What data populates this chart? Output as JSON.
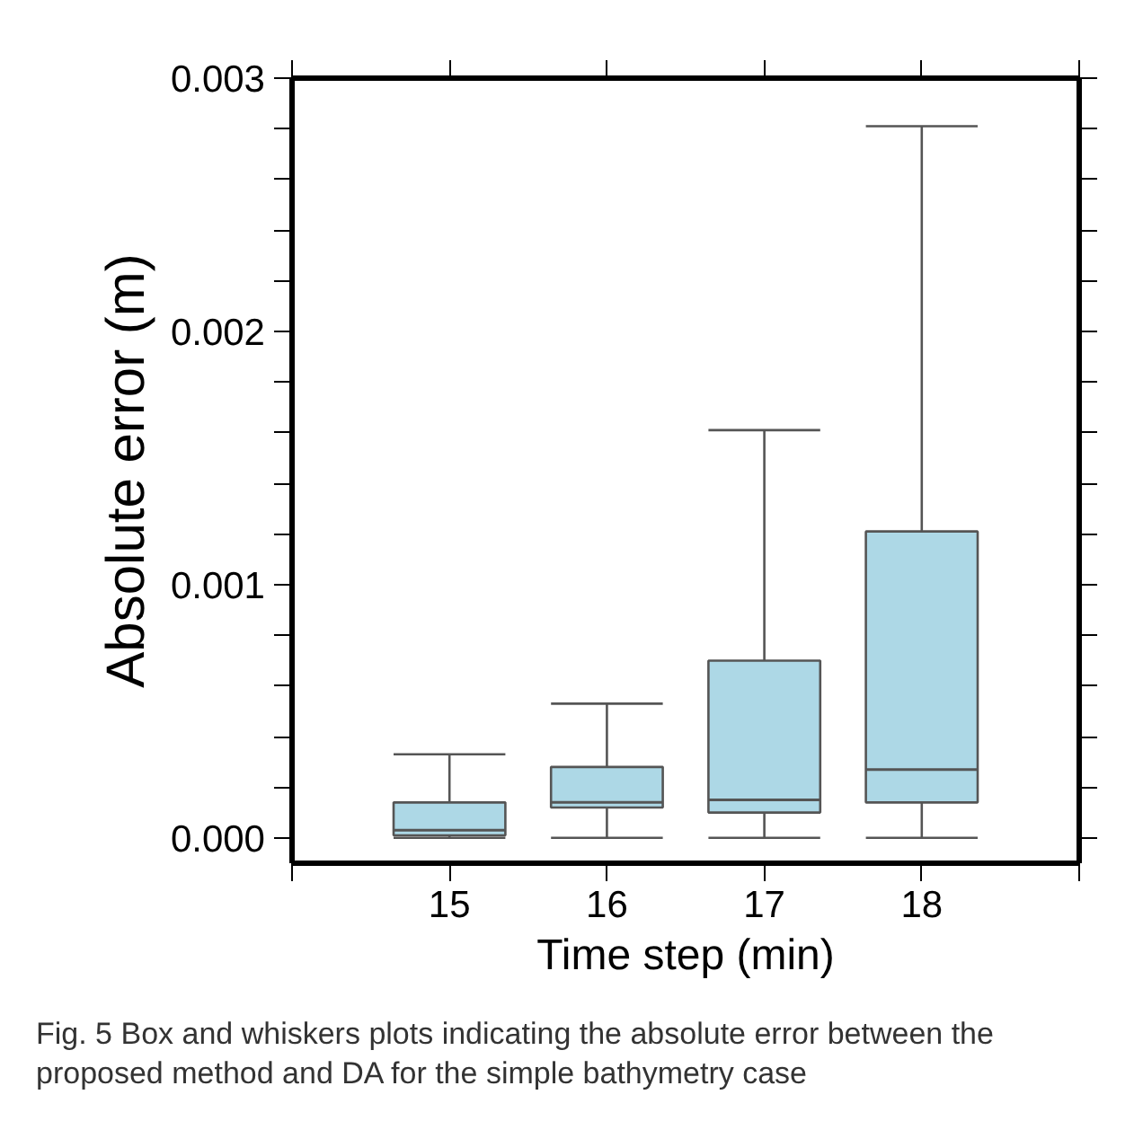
{
  "chart_data": {
    "type": "box",
    "xlabel": "Time step (min)",
    "ylabel": "Absolute error (m)",
    "x": [
      15,
      16,
      17,
      18
    ],
    "xlim": [
      14,
      19
    ],
    "xticks": [
      {
        "value": 14,
        "label": null
      },
      15,
      16,
      17,
      18,
      {
        "value": 19,
        "label": null
      }
    ],
    "ylim": [
      -0.0001,
      0.003
    ],
    "yticks": [
      {
        "value": 0,
        "label": "0.000"
      },
      {
        "value": 0.0002,
        "label": null
      },
      {
        "value": 0.0004,
        "label": null
      },
      {
        "value": 0.0006,
        "label": null
      },
      {
        "value": 0.0008,
        "label": null
      },
      {
        "value": 0.001,
        "label": "0.001"
      },
      {
        "value": 0.0012,
        "label": null
      },
      {
        "value": 0.0014,
        "label": null
      },
      {
        "value": 0.0016,
        "label": null
      },
      {
        "value": 0.0018,
        "label": null
      },
      {
        "value": 0.002,
        "label": "0.002"
      },
      {
        "value": 0.0022,
        "label": null
      },
      {
        "value": 0.0024,
        "label": null
      },
      {
        "value": 0.0026,
        "label": null
      },
      {
        "value": 0.0028,
        "label": null
      },
      {
        "value": 0.003,
        "label": "0.003"
      }
    ],
    "color": "#add8e6",
    "boxes": [
      {
        "low": 0.0,
        "q1": 1e-05,
        "median": 3e-05,
        "q3": 0.00014,
        "high": 0.00033
      },
      {
        "low": 0.0,
        "q1": 0.00012,
        "median": 0.00014,
        "q3": 0.00028,
        "high": 0.00053
      },
      {
        "low": 0.0,
        "q1": 0.0001,
        "median": 0.00015,
        "q3": 0.0007,
        "high": 0.00161
      },
      {
        "low": 0.0,
        "q1": 0.00014,
        "median": 0.00027,
        "q3": 0.00121,
        "high": 0.00281
      }
    ],
    "grid": false,
    "annotations": [
      "Fig. 5  Box and whiskers plots indicating the absolute error between the proposed method and DA for the simple bathymetry case"
    ]
  }
}
